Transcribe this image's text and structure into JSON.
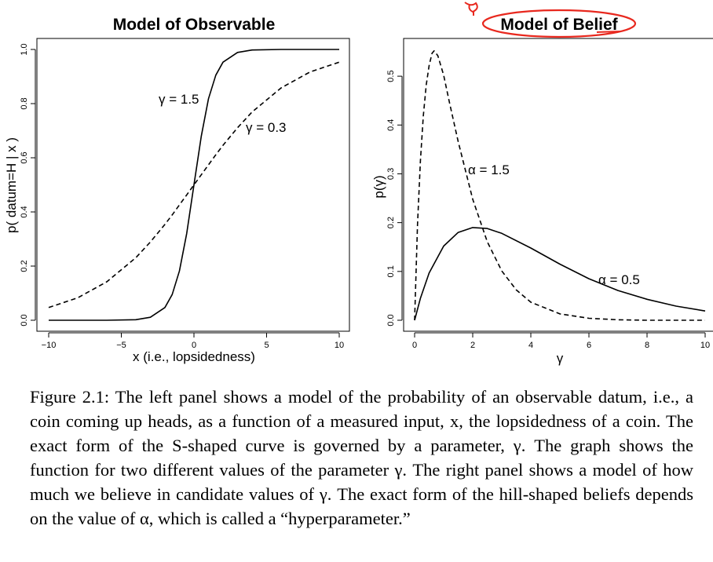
{
  "annotation_color": "#e8281e",
  "chart_data": [
    {
      "type": "line",
      "title": "Model of Observable",
      "xlabel": "x (i.e., lopsidedness)",
      "ylabel": "p( datum=H | x )",
      "xlim": [
        -10,
        10
      ],
      "ylim": [
        0,
        1
      ],
      "x_ticks": [
        -10,
        -5,
        0,
        5,
        10
      ],
      "y_ticks": [
        0.0,
        0.2,
        0.4,
        0.6,
        0.8,
        1.0
      ],
      "x_tick_labels": [
        "−10",
        "−5",
        "0",
        "5",
        "10"
      ],
      "y_tick_labels": [
        "0.0",
        "0.2",
        "0.4",
        "0.6",
        "0.8",
        "1.0"
      ],
      "grid": false,
      "series": [
        {
          "name": "γ = 1.5",
          "style": "solid",
          "x": [
            -10,
            -8,
            -6,
            -4,
            -3,
            -2,
            -1.5,
            -1,
            -0.5,
            0,
            0.5,
            1,
            1.5,
            2,
            3,
            4,
            6,
            8,
            10
          ],
          "y": [
            0.0,
            0.0,
            0.0,
            0.002,
            0.011,
            0.047,
            0.095,
            0.182,
            0.321,
            0.5,
            0.679,
            0.818,
            0.905,
            0.953,
            0.989,
            0.998,
            1.0,
            1.0,
            1.0
          ]
        },
        {
          "name": "γ = 0.3",
          "style": "dashed",
          "x": [
            -10,
            -8,
            -6,
            -4,
            -3,
            -2,
            -1.5,
            -1,
            -0.5,
            0,
            0.5,
            1,
            1.5,
            2,
            3,
            4,
            6,
            8,
            10
          ],
          "y": [
            0.047,
            0.083,
            0.142,
            0.231,
            0.289,
            0.354,
            0.389,
            0.426,
            0.463,
            0.5,
            0.537,
            0.574,
            0.611,
            0.646,
            0.711,
            0.769,
            0.858,
            0.917,
            0.953
          ]
        }
      ]
    },
    {
      "type": "line",
      "title": "Model of Belief",
      "xlabel": "γ",
      "ylabel": "p(γ)",
      "xlim": [
        0,
        10
      ],
      "ylim": [
        0,
        0.55
      ],
      "x_ticks": [
        0,
        2,
        4,
        6,
        8,
        10
      ],
      "y_ticks": [
        0.0,
        0.1,
        0.2,
        0.3,
        0.4,
        0.5
      ],
      "x_tick_labels": [
        "0",
        "2",
        "4",
        "6",
        "8",
        "10"
      ],
      "y_tick_labels": [
        "0.0",
        "0.1",
        "0.2",
        "0.3",
        "0.4",
        "0.5"
      ],
      "grid": false,
      "series": [
        {
          "name": "α = 1.5",
          "style": "dashed",
          "x": [
            0,
            0.1,
            0.2,
            0.3,
            0.4,
            0.5,
            0.6,
            0.67,
            0.8,
            1.0,
            1.2,
            1.5,
            2.0,
            2.5,
            3.0,
            3.5,
            4.0,
            5.0,
            6.0,
            7.0,
            8.0,
            10.0
          ],
          "y": [
            0.0,
            0.196,
            0.327,
            0.419,
            0.482,
            0.522,
            0.547,
            0.552,
            0.542,
            0.502,
            0.446,
            0.366,
            0.248,
            0.161,
            0.101,
            0.062,
            0.037,
            0.013,
            0.004,
            0.001,
            0.0,
            0.0
          ]
        },
        {
          "name": "α = 0.5",
          "style": "solid",
          "x": [
            0,
            0.2,
            0.5,
            1.0,
            1.5,
            2.0,
            2.5,
            3.0,
            4.0,
            5.0,
            6.0,
            7.0,
            8.0,
            9.0,
            10.0
          ],
          "y": [
            0.0,
            0.045,
            0.097,
            0.152,
            0.18,
            0.19,
            0.188,
            0.178,
            0.148,
            0.115,
            0.085,
            0.061,
            0.043,
            0.029,
            0.019
          ]
        }
      ]
    }
  ],
  "caption": "Figure 2.1: The left panel shows a model of the probability of an observable datum, i.e., a coin coming up heads, as a function of a measured input, x, the lopsidedness of a coin. The exact form of the S-shaped curve is governed by a parameter, γ. The graph shows the function for two different values of the parameter γ. The right panel shows a model of how much we believe in candidate values of γ. The exact form of the hill-shaped beliefs depends on the value of α, which is called a “hyperparameter.”"
}
